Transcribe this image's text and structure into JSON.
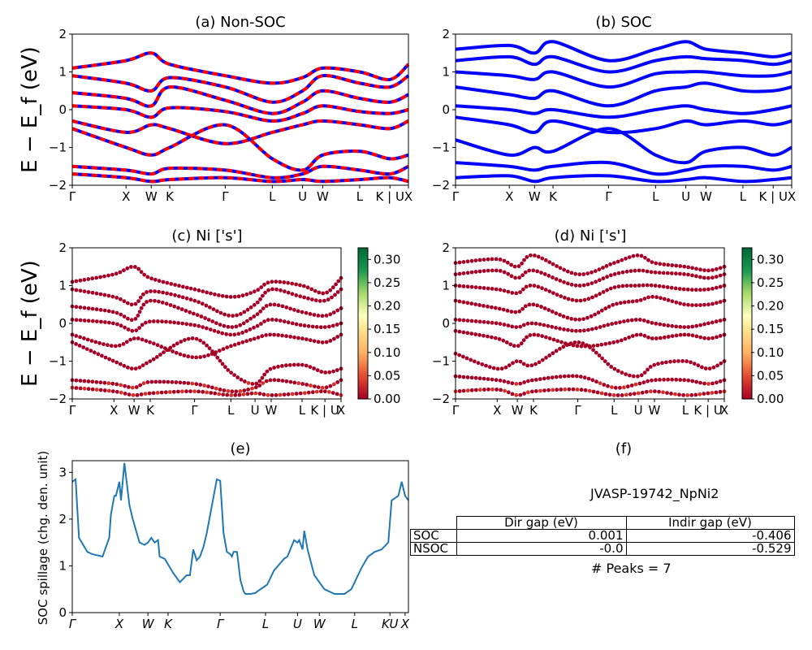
{
  "panels": {
    "a": {
      "title": "(a) Non-SOC"
    },
    "b": {
      "title": "(b) SOC"
    },
    "c": {
      "title": "(c)  Ni ['s']"
    },
    "d": {
      "title": "(d) Ni ['s']"
    },
    "e": {
      "title": "(e)"
    },
    "f": {
      "title": "(f)"
    }
  },
  "y_label": "E − E_f (eV)",
  "spillage_ylabel": "SOC spillage (chg. den. unit)",
  "colorbar_ticks": [
    "0.00",
    "0.05",
    "0.10",
    "0.15",
    "0.20",
    "0.25",
    "0.30"
  ],
  "colors": {
    "spin_up": "#0000ff",
    "spin_down": "#ff0000",
    "soc_bands": "#0000ff",
    "spillage_line": "#1f77b4",
    "projection_low": "#a50026"
  },
  "table": {
    "title": "JVASP-19742_NpNi2",
    "headers": [
      "Dir gap (eV)",
      "Indir gap (eV)"
    ],
    "rows": [
      {
        "label": "SOC",
        "dir": "0.001",
        "indir": "-0.406"
      },
      {
        "label": "NSOC",
        "dir": "-0.0",
        "indir": "-0.529"
      }
    ],
    "peaks": "# Peaks = 7"
  },
  "chart_data": [
    {
      "type": "line",
      "panel": "a",
      "title": "(a) Non-SOC",
      "ylabel": "E − E_f (eV)",
      "ylim": [
        -2,
        2
      ],
      "y_ticks": [
        "2",
        "1",
        "0",
        "−1",
        "−2"
      ],
      "x_ticks": [
        "Γ",
        "X",
        "W",
        "K",
        "Γ",
        "L",
        "U",
        "W",
        "L",
        "K | U",
        "X"
      ],
      "series": [
        {
          "values": [
            1.1,
            1.3,
            1.5,
            1.2,
            0.9,
            0.7,
            0.85,
            1.1,
            1.0,
            0.8,
            1.2
          ]
        },
        {
          "values": [
            0.9,
            0.7,
            0.5,
            0.85,
            0.6,
            0.2,
            0.5,
            0.9,
            0.7,
            0.6,
            0.9
          ]
        },
        {
          "values": [
            0.45,
            0.3,
            0.1,
            0.6,
            0.25,
            -0.1,
            0.2,
            0.5,
            0.3,
            0.2,
            0.4
          ]
        },
        {
          "values": [
            0.1,
            0.0,
            -0.2,
            0.05,
            -0.05,
            -0.3,
            -0.1,
            0.1,
            -0.05,
            -0.1,
            0.0
          ]
        },
        {
          "values": [
            -0.3,
            -0.6,
            -0.4,
            -0.5,
            -0.9,
            -0.6,
            -0.4,
            -0.3,
            -0.4,
            -0.5,
            -0.3
          ]
        },
        {
          "values": [
            -0.5,
            -1.0,
            -1.2,
            -1.0,
            -0.4,
            -1.3,
            -1.6,
            -1.2,
            -1.1,
            -1.3,
            -1.2
          ]
        },
        {
          "values": [
            -1.5,
            -1.6,
            -1.7,
            -1.55,
            -1.6,
            -1.8,
            -1.7,
            -1.5,
            -1.6,
            -1.7,
            -1.5
          ]
        },
        {
          "values": [
            -1.7,
            -1.8,
            -1.9,
            -1.85,
            -1.8,
            -1.9,
            -1.85,
            -1.9,
            -1.85,
            -1.8,
            -1.9
          ]
        }
      ]
    },
    {
      "type": "line",
      "panel": "b",
      "title": "(b) SOC",
      "ylim": [
        -2,
        2
      ],
      "y_ticks": [
        "2",
        "1",
        "0",
        "−1",
        "−2"
      ],
      "x_ticks": [
        "Γ",
        "X",
        "W",
        "K",
        "Γ",
        "L",
        "U",
        "W",
        "L",
        "K | U",
        "X"
      ],
      "series": [
        {
          "values": [
            1.6,
            1.7,
            1.5,
            1.8,
            1.3,
            1.6,
            1.8,
            1.6,
            1.5,
            1.4,
            1.5
          ]
        },
        {
          "values": [
            1.3,
            1.4,
            1.2,
            1.4,
            1.0,
            1.3,
            1.4,
            1.35,
            1.3,
            1.2,
            1.3
          ]
        },
        {
          "values": [
            1.0,
            0.9,
            0.8,
            1.0,
            0.6,
            0.95,
            1.0,
            1.0,
            0.9,
            0.9,
            1.0
          ]
        },
        {
          "values": [
            0.6,
            0.4,
            0.3,
            0.5,
            0.1,
            0.5,
            0.6,
            0.7,
            0.5,
            0.5,
            0.6
          ]
        },
        {
          "values": [
            0.1,
            0.0,
            -0.1,
            0.0,
            -0.2,
            0.0,
            0.1,
            0.0,
            -0.1,
            0.0,
            0.1
          ]
        },
        {
          "values": [
            -0.2,
            -0.4,
            -0.6,
            -0.3,
            -0.6,
            -0.5,
            -0.3,
            -0.4,
            -0.3,
            -0.4,
            -0.3
          ]
        },
        {
          "values": [
            -0.8,
            -1.2,
            -1.0,
            -1.1,
            -0.5,
            -1.2,
            -1.4,
            -1.1,
            -1.0,
            -1.2,
            -1.0
          ]
        },
        {
          "values": [
            -1.4,
            -1.5,
            -1.6,
            -1.5,
            -1.4,
            -1.7,
            -1.6,
            -1.5,
            -1.5,
            -1.6,
            -1.5
          ]
        },
        {
          "values": [
            -1.8,
            -1.75,
            -1.9,
            -1.8,
            -1.75,
            -1.9,
            -1.85,
            -1.8,
            -1.9,
            -1.85,
            -1.8
          ]
        }
      ]
    },
    {
      "type": "scatter",
      "panel": "c",
      "title": "(c)  Ni ['s']",
      "ylabel": "E − E_f (eV)",
      "ylim": [
        -2,
        2
      ],
      "y_ticks": [
        "2",
        "1",
        "0",
        "−1",
        "−2"
      ],
      "x_ticks": [
        "Γ",
        "X",
        "W",
        "K",
        "Γ",
        "L",
        "U",
        "W",
        "L",
        "K | U",
        "X"
      ],
      "colorbar": {
        "ticks": [
          "0.00",
          "0.05",
          "0.10",
          "0.15",
          "0.20",
          "0.25",
          "0.30"
        ],
        "range": [
          0,
          0.32
        ]
      },
      "series": [
        {
          "values": [
            1.1,
            1.3,
            1.5,
            1.2,
            0.9,
            0.7,
            0.85,
            1.1,
            1.0,
            0.8,
            1.2
          ]
        },
        {
          "values": [
            0.9,
            0.7,
            0.5,
            0.85,
            0.6,
            0.2,
            0.5,
            0.9,
            0.7,
            0.6,
            0.9
          ]
        },
        {
          "values": [
            0.45,
            0.3,
            0.1,
            0.6,
            0.25,
            -0.1,
            0.2,
            0.5,
            0.3,
            0.2,
            0.4
          ]
        },
        {
          "values": [
            0.1,
            0.0,
            -0.2,
            0.05,
            -0.05,
            -0.3,
            -0.1,
            0.1,
            -0.05,
            -0.1,
            0.0
          ]
        },
        {
          "values": [
            -0.3,
            -0.6,
            -0.4,
            -0.5,
            -0.9,
            -0.6,
            -0.4,
            -0.3,
            -0.4,
            -0.5,
            -0.3
          ]
        },
        {
          "values": [
            -0.5,
            -1.0,
            -1.2,
            -1.0,
            -0.4,
            -1.3,
            -1.6,
            -1.2,
            -1.1,
            -1.3,
            -1.2
          ]
        },
        {
          "values": [
            -1.5,
            -1.6,
            -1.7,
            -1.55,
            -1.6,
            -1.8,
            -1.7,
            -1.5,
            -1.6,
            -1.7,
            -1.5
          ]
        },
        {
          "values": [
            -1.7,
            -1.8,
            -1.9,
            -1.85,
            -1.8,
            -1.9,
            -1.85,
            -1.9,
            -1.85,
            -1.8,
            -1.9
          ]
        }
      ]
    },
    {
      "type": "scatter",
      "panel": "d",
      "title": "(d) Ni ['s']",
      "ylim": [
        -2,
        2
      ],
      "y_ticks": [
        "2",
        "1",
        "0",
        "−1",
        "−2"
      ],
      "x_ticks": [
        "Γ",
        "X",
        "W",
        "K",
        "Γ",
        "L",
        "U",
        "W",
        "L",
        "K | U",
        "X"
      ],
      "colorbar": {
        "ticks": [
          "0.00",
          "0.05",
          "0.10",
          "0.15",
          "0.20",
          "0.25",
          "0.30"
        ],
        "range": [
          0,
          0.32
        ]
      },
      "series": [
        {
          "values": [
            1.6,
            1.7,
            1.5,
            1.8,
            1.3,
            1.6,
            1.8,
            1.6,
            1.5,
            1.4,
            1.5
          ]
        },
        {
          "values": [
            1.3,
            1.4,
            1.2,
            1.4,
            1.0,
            1.3,
            1.4,
            1.35,
            1.3,
            1.2,
            1.3
          ]
        },
        {
          "values": [
            1.0,
            0.9,
            0.8,
            1.0,
            0.6,
            0.95,
            1.0,
            1.0,
            0.9,
            0.9,
            1.0
          ]
        },
        {
          "values": [
            0.6,
            0.4,
            0.3,
            0.5,
            0.1,
            0.5,
            0.6,
            0.7,
            0.5,
            0.5,
            0.6
          ]
        },
        {
          "values": [
            0.1,
            0.0,
            -0.1,
            0.0,
            -0.2,
            0.0,
            0.1,
            0.0,
            -0.1,
            0.0,
            0.1
          ]
        },
        {
          "values": [
            -0.2,
            -0.4,
            -0.6,
            -0.3,
            -0.6,
            -0.5,
            -0.3,
            -0.4,
            -0.3,
            -0.4,
            -0.3
          ]
        },
        {
          "values": [
            -0.8,
            -1.2,
            -1.0,
            -1.1,
            -0.5,
            -1.2,
            -1.4,
            -1.1,
            -1.0,
            -1.2,
            -1.0
          ]
        },
        {
          "values": [
            -1.4,
            -1.5,
            -1.6,
            -1.5,
            -1.4,
            -1.7,
            -1.6,
            -1.5,
            -1.5,
            -1.6,
            -1.5
          ]
        },
        {
          "values": [
            -1.8,
            -1.75,
            -1.9,
            -1.8,
            -1.75,
            -1.9,
            -1.85,
            -1.8,
            -1.9,
            -1.85,
            -1.8
          ]
        }
      ]
    },
    {
      "type": "line",
      "panel": "e",
      "title": "(e)",
      "ylabel": "SOC spillage (chg. den. unit)",
      "ylim": [
        0,
        3.25
      ],
      "y_ticks": [
        "0",
        "1",
        "2",
        "3"
      ],
      "x_ticks": [
        "Γ",
        "X",
        "W",
        "K",
        "Γ",
        "L",
        "U",
        "W",
        "L",
        "KU",
        "X"
      ],
      "x": [
        0,
        0.01,
        0.02,
        0.045,
        0.06,
        0.09,
        0.11,
        0.115,
        0.125,
        0.13,
        0.14,
        0.145,
        0.155,
        0.17,
        0.18,
        0.2,
        0.215,
        0.225,
        0.235,
        0.245,
        0.255,
        0.26,
        0.275,
        0.3,
        0.32,
        0.34,
        0.35,
        0.36,
        0.37,
        0.38,
        0.39,
        0.4,
        0.43,
        0.44,
        0.45,
        0.46,
        0.47,
        0.475,
        0.48,
        0.49,
        0.5,
        0.51,
        0.515,
        0.53,
        0.545,
        0.55,
        0.58,
        0.6,
        0.63,
        0.64,
        0.66,
        0.67,
        0.675,
        0.68,
        0.685,
        0.69,
        0.7,
        0.72,
        0.75,
        0.78,
        0.81,
        0.83,
        0.84,
        0.86,
        0.88,
        0.89,
        0.9,
        0.92,
        0.94,
        0.95,
        0.97,
        0.98,
        0.99,
        1.0
      ],
      "values": [
        2.8,
        2.85,
        1.6,
        1.3,
        1.25,
        1.2,
        1.6,
        2.1,
        2.5,
        2.5,
        2.8,
        2.4,
        3.2,
        2.3,
        2.0,
        1.5,
        1.45,
        1.5,
        1.6,
        1.5,
        1.55,
        1.2,
        1.15,
        0.85,
        0.65,
        0.8,
        0.8,
        1.35,
        1.12,
        1.2,
        1.4,
        1.7,
        2.85,
        2.82,
        1.7,
        1.3,
        1.25,
        1.2,
        1.3,
        1.3,
        0.7,
        0.45,
        0.4,
        0.4,
        0.42,
        0.45,
        0.6,
        0.9,
        1.15,
        1.2,
        1.55,
        1.5,
        1.55,
        1.45,
        1.35,
        1.75,
        1.35,
        0.8,
        0.5,
        0.4,
        0.4,
        0.5,
        0.65,
        0.95,
        1.2,
        1.25,
        1.3,
        1.35,
        1.5,
        2.4,
        2.5,
        2.8,
        2.5,
        2.4
      ]
    }
  ]
}
